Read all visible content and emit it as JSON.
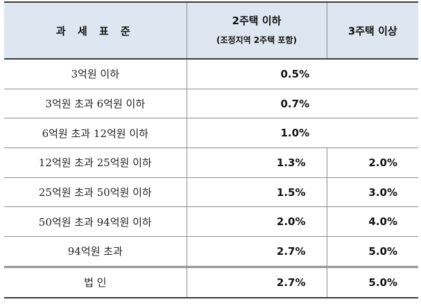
{
  "header": {
    "col1": "과 세 표 준",
    "col2_main": "2주택 이하",
    "col2_sub": "(조정지역 2주택 포함)",
    "col3": "3주택 이상"
  },
  "rows": [
    {
      "label": "3억원 이하",
      "merged": "0.5%"
    },
    {
      "label": "3억원 초과 6억원 이하",
      "merged": "0.7%"
    },
    {
      "label": "6억원 초과 12억원 이하",
      "merged": "1.0%"
    },
    {
      "label": "12억원 초과 25억원 이하",
      "two_or_less": "1.3%",
      "three_plus": "2.0%"
    },
    {
      "label": "25억원 초과 50억원 이하",
      "two_or_less": "1.5%",
      "three_plus": "3.0%"
    },
    {
      "label": "50억원 초과 94억원 이하",
      "two_or_less": "2.0%",
      "three_plus": "4.0%"
    },
    {
      "label": "94억원 초과",
      "two_or_less": "2.7%",
      "three_plus": "5.0%"
    }
  ],
  "corporate": {
    "label": "법 인",
    "two_or_less": "2.7%",
    "three_plus": "5.0%"
  }
}
